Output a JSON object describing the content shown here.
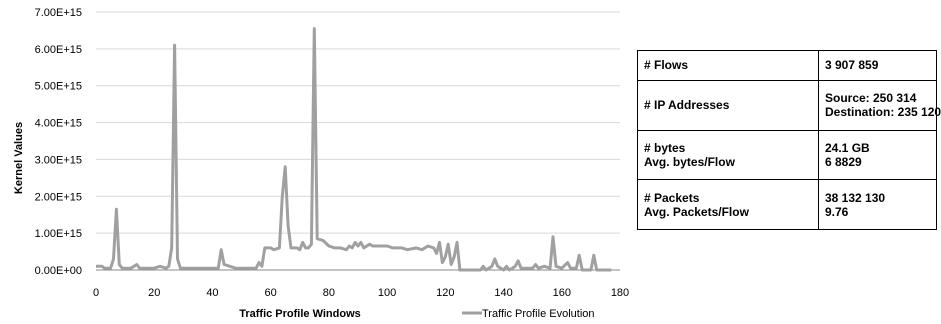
{
  "chart_data": {
    "type": "line",
    "xlabel": "Traffic Profile Windows",
    "ylabel": "Kernel Values",
    "xlim": [
      0,
      180
    ],
    "ylim": [
      0,
      7000000000000000.0
    ],
    "x_ticks": [
      "0",
      "20",
      "40",
      "60",
      "80",
      "100",
      "120",
      "140",
      "160",
      "180"
    ],
    "y_ticks": [
      "0.00E+00",
      "1.00E+15",
      "2.00E+15",
      "3.00E+15",
      "4.00E+15",
      "5.00E+15",
      "6.00E+15",
      "7.00E+15"
    ],
    "grid": "horizontal",
    "legend_position": "bottom-right",
    "line_color": "#a0a0a0",
    "series": [
      {
        "name": "Traffic Profile Evolution",
        "points": [
          [
            0,
            100000000000000.0
          ],
          [
            2,
            100000000000000.0
          ],
          [
            3,
            50000000000000.0
          ],
          [
            5,
            50000000000000.0
          ],
          [
            6,
            300000000000000.0
          ],
          [
            7,
            1650000000000000.0
          ],
          [
            8,
            150000000000000.0
          ],
          [
            9,
            50000000000000.0
          ],
          [
            12,
            50000000000000.0
          ],
          [
            14,
            150000000000000.0
          ],
          [
            15,
            50000000000000.0
          ],
          [
            18,
            50000000000000.0
          ],
          [
            20,
            50000000000000.0
          ],
          [
            22,
            100000000000000.0
          ],
          [
            24,
            50000000000000.0
          ],
          [
            25,
            100000000000000.0
          ],
          [
            26,
            600000000000000.0
          ],
          [
            27,
            6100000000000000.0
          ],
          [
            28,
            300000000000000.0
          ],
          [
            29,
            50000000000000.0
          ],
          [
            32,
            50000000000000.0
          ],
          [
            34,
            50000000000000.0
          ],
          [
            36,
            50000000000000.0
          ],
          [
            38,
            50000000000000.0
          ],
          [
            40,
            50000000000000.0
          ],
          [
            42,
            50000000000000.0
          ],
          [
            43,
            550000000000000.0
          ],
          [
            44,
            150000000000000.0
          ],
          [
            46,
            100000000000000.0
          ],
          [
            48,
            50000000000000.0
          ],
          [
            52,
            50000000000000.0
          ],
          [
            55,
            50000000000000.0
          ],
          [
            56,
            200000000000000.0
          ],
          [
            57,
            100000000000000.0
          ],
          [
            58,
            600000000000000.0
          ],
          [
            60,
            600000000000000.0
          ],
          [
            61,
            550000000000000.0
          ],
          [
            63,
            600000000000000.0
          ],
          [
            64,
            2000000000000000.0
          ],
          [
            65,
            2800000000000000.0
          ],
          [
            66,
            1200000000000000.0
          ],
          [
            67,
            600000000000000.0
          ],
          [
            69,
            600000000000000.0
          ],
          [
            70,
            550000000000000.0
          ],
          [
            71,
            750000000000000.0
          ],
          [
            72,
            600000000000000.0
          ],
          [
            73,
            600000000000000.0
          ],
          [
            74,
            700000000000000.0
          ],
          [
            75,
            6550000000000000.0
          ],
          [
            76,
            850000000000000.0
          ],
          [
            78,
            800000000000000.0
          ],
          [
            80,
            650000000000000.0
          ],
          [
            82,
            600000000000000.0
          ],
          [
            84,
            600000000000000.0
          ],
          [
            86,
            550000000000000.0
          ],
          [
            87,
            650000000000000.0
          ],
          [
            88,
            600000000000000.0
          ],
          [
            89,
            750000000000000.0
          ],
          [
            90,
            650000000000000.0
          ],
          [
            91,
            750000000000000.0
          ],
          [
            92,
            600000000000000.0
          ],
          [
            94,
            700000000000000.0
          ],
          [
            95,
            650000000000000.0
          ],
          [
            97,
            650000000000000.0
          ],
          [
            100,
            650000000000000.0
          ],
          [
            102,
            600000000000000.0
          ],
          [
            105,
            600000000000000.0
          ],
          [
            107,
            550000000000000.0
          ],
          [
            110,
            600000000000000.0
          ],
          [
            112,
            550000000000000.0
          ],
          [
            114,
            650000000000000.0
          ],
          [
            116,
            600000000000000.0
          ],
          [
            117,
            450000000000000.0
          ],
          [
            118,
            750000000000000.0
          ],
          [
            119,
            200000000000000.0
          ],
          [
            120,
            350000000000000.0
          ],
          [
            121,
            700000000000000.0
          ],
          [
            122,
            150000000000000.0
          ],
          [
            123,
            350000000000000.0
          ],
          [
            124,
            750000000000000.0
          ],
          [
            125,
            0.0
          ],
          [
            130,
            0.0
          ],
          [
            132,
            0.0
          ],
          [
            133,
            100000000000000.0
          ],
          [
            134,
            0.0
          ],
          [
            136,
            100000000000000.0
          ],
          [
            137,
            300000000000000.0
          ],
          [
            138,
            100000000000000.0
          ],
          [
            140,
            0.0
          ],
          [
            141,
            100000000000000.0
          ],
          [
            142,
            0.0
          ],
          [
            144,
            100000000000000.0
          ],
          [
            145,
            250000000000000.0
          ],
          [
            146,
            50000000000000.0
          ],
          [
            148,
            50000000000000.0
          ],
          [
            150,
            50000000000000.0
          ],
          [
            151,
            150000000000000.0
          ],
          [
            152,
            50000000000000.0
          ],
          [
            154,
            100000000000000.0
          ],
          [
            156,
            50000000000000.0
          ],
          [
            157,
            900000000000000.0
          ],
          [
            158,
            100000000000000.0
          ],
          [
            160,
            50000000000000.0
          ],
          [
            162,
            200000000000000.0
          ],
          [
            163,
            50000000000000.0
          ],
          [
            165,
            50000000000000.0
          ],
          [
            166,
            400000000000000.0
          ],
          [
            167,
            0.0
          ],
          [
            170,
            0.0
          ],
          [
            171,
            400000000000000.0
          ],
          [
            172,
            0.0
          ],
          [
            177,
            0.0
          ]
        ]
      }
    ]
  },
  "table": {
    "rows": [
      {
        "label": "# Flows",
        "label2": "",
        "value": "3 907 859",
        "value2": ""
      },
      {
        "label": "# IP Addresses",
        "label2": "",
        "value": "Source: 250 314",
        "value2": "Destination: 235 120"
      },
      {
        "label": "# bytes",
        "label2": "Avg. bytes/Flow",
        "value": "24.1 GB",
        "value2": "6 8829"
      },
      {
        "label": "# Packets",
        "label2": "Avg. Packets/Flow",
        "value": "38 132 130",
        "value2": "9.76"
      }
    ]
  }
}
